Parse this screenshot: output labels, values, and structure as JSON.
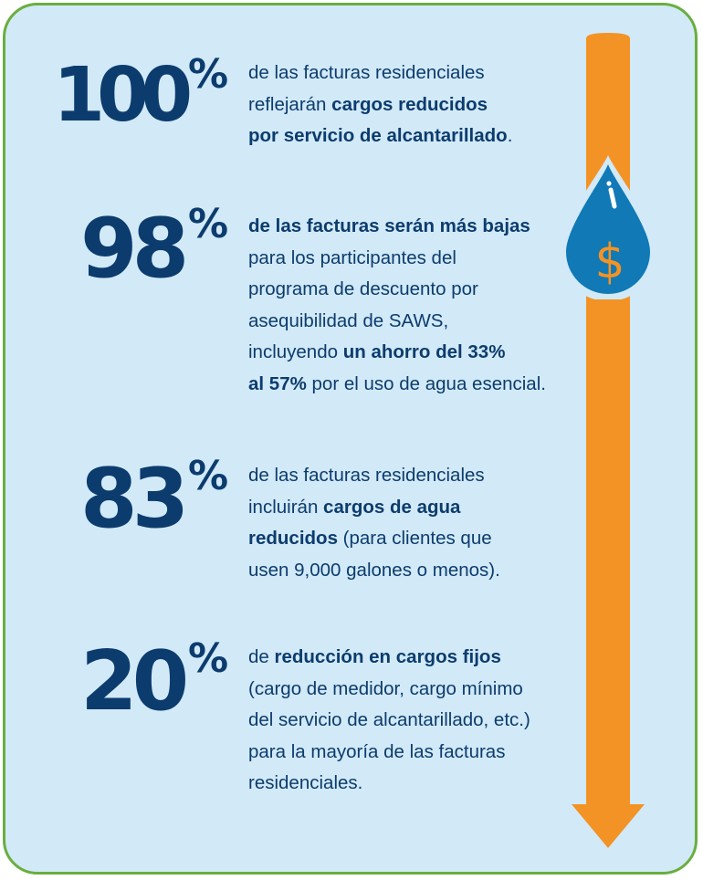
{
  "colors": {
    "background": "#d2e9f7",
    "border": "#6aae3f",
    "text": "#0c3c6e",
    "arrow": "#f39325",
    "drop": "#1079b6"
  },
  "icons": [
    "down-arrow-icon",
    "water-drop-dollar-icon"
  ],
  "stats": [
    {
      "number": "100",
      "percent": "%",
      "parts": [
        {
          "t": "de las facturas residenciales",
          "b": false
        },
        {
          "t": "reflejarán ",
          "b": false
        },
        {
          "t": "cargos reducidos",
          "b": true
        },
        {
          "t": "por servicio de alcantarillado",
          "b": true
        },
        {
          "t": ".",
          "b": false
        }
      ]
    },
    {
      "number": "98",
      "percent": "%",
      "parts": [
        {
          "t": "de las facturas serán más bajas",
          "b": true
        },
        {
          "t": "para los participantes del",
          "b": false
        },
        {
          "t": "programa de descuento por",
          "b": false
        },
        {
          "t": "asequibilidad de SAWS,",
          "b": false
        },
        {
          "t": "incluyendo ",
          "b": false
        },
        {
          "t": "un ahorro del 33%",
          "b": true
        },
        {
          "t": "al 57%",
          "b": true
        },
        {
          "t": " por el uso de agua esencial.",
          "b": false
        }
      ]
    },
    {
      "number": "83",
      "percent": "%",
      "parts": [
        {
          "t": "de las facturas residenciales",
          "b": false
        },
        {
          "t": "incluirán ",
          "b": false
        },
        {
          "t": "cargos de agua",
          "b": true
        },
        {
          "t": "reducidos",
          "b": true
        },
        {
          "t": " (para clientes que",
          "b": false
        },
        {
          "t": "usen 9,000 galones o menos).",
          "b": false
        }
      ]
    },
    {
      "number": "20",
      "percent": "%",
      "parts": [
        {
          "t": "de ",
          "b": false
        },
        {
          "t": "reducción en cargos fijos",
          "b": true
        },
        {
          "t": "(cargo de medidor, cargo mínimo",
          "b": false
        },
        {
          "t": "del servicio de alcantarillado, etc.)",
          "b": false
        },
        {
          "t": "para la mayoría de las facturas",
          "b": false
        },
        {
          "t": "residenciales.",
          "b": false
        }
      ]
    }
  ]
}
